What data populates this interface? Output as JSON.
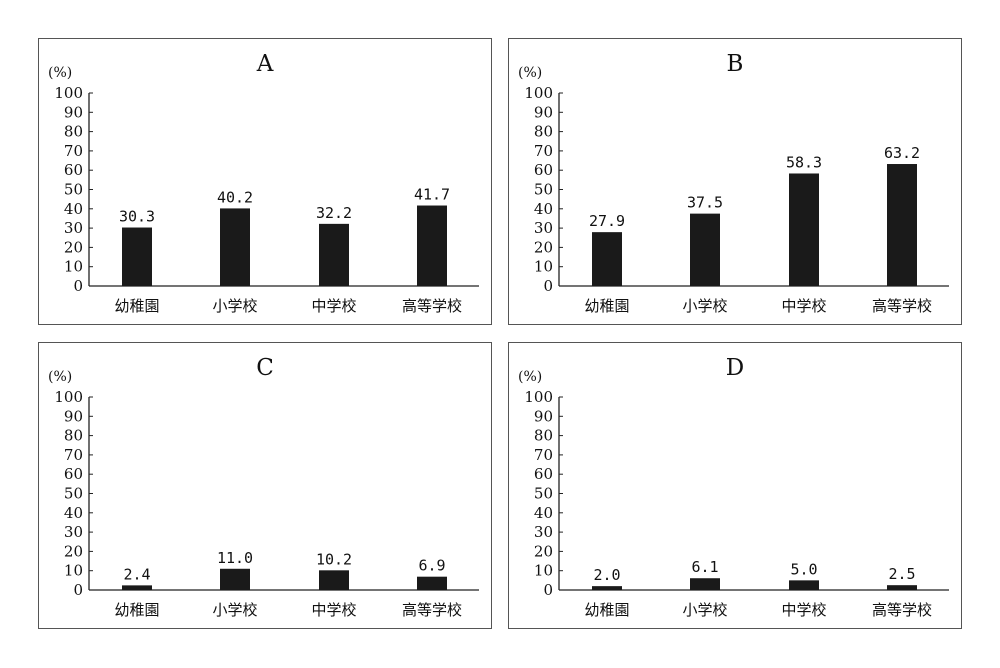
{
  "chart_data": [
    {
      "type": "bar",
      "title": "A",
      "ylabel": "(%)",
      "categories": [
        "幼稚園",
        "小学校",
        "中学校",
        "高等学校"
      ],
      "values": [
        30.3,
        40.2,
        32.2,
        41.7
      ],
      "value_labels": [
        "30.3",
        "40.2",
        "32.2",
        "41.7"
      ],
      "ylim": [
        0,
        100
      ],
      "yticks": [
        "0",
        "10",
        "20",
        "30",
        "40",
        "50",
        "60",
        "70",
        "80",
        "90",
        "100"
      ],
      "bar_color": "#1a1a1a",
      "grid": false,
      "legend": "none"
    },
    {
      "type": "bar",
      "title": "B",
      "ylabel": "(%)",
      "categories": [
        "幼稚園",
        "小学校",
        "中学校",
        "高等学校"
      ],
      "values": [
        27.9,
        37.5,
        58.3,
        63.2
      ],
      "value_labels": [
        "27.9",
        "37.5",
        "58.3",
        "63.2"
      ],
      "ylim": [
        0,
        100
      ],
      "yticks": [
        "0",
        "10",
        "20",
        "30",
        "40",
        "50",
        "60",
        "70",
        "80",
        "90",
        "100"
      ],
      "bar_color": "#1a1a1a",
      "grid": false,
      "legend": "none"
    },
    {
      "type": "bar",
      "title": "C",
      "ylabel": "(%)",
      "categories": [
        "幼稚園",
        "小学校",
        "中学校",
        "高等学校"
      ],
      "values": [
        2.4,
        11.0,
        10.2,
        6.9
      ],
      "value_labels": [
        "2.4",
        "11.0",
        "10.2",
        "6.9"
      ],
      "ylim": [
        0,
        100
      ],
      "yticks": [
        "0",
        "10",
        "20",
        "30",
        "40",
        "50",
        "60",
        "70",
        "80",
        "90",
        "100"
      ],
      "bar_color": "#1a1a1a",
      "grid": false,
      "legend": "none"
    },
    {
      "type": "bar",
      "title": "D",
      "ylabel": "(%)",
      "categories": [
        "幼稚園",
        "小学校",
        "中学校",
        "高等学校"
      ],
      "values": [
        2.0,
        6.1,
        5.0,
        2.5
      ],
      "value_labels": [
        "2.0",
        "6.1",
        "5.0",
        "2.5"
      ],
      "ylim": [
        0,
        100
      ],
      "yticks": [
        "0",
        "10",
        "20",
        "30",
        "40",
        "50",
        "60",
        "70",
        "80",
        "90",
        "100"
      ],
      "bar_color": "#1a1a1a",
      "grid": false,
      "legend": "none"
    }
  ]
}
